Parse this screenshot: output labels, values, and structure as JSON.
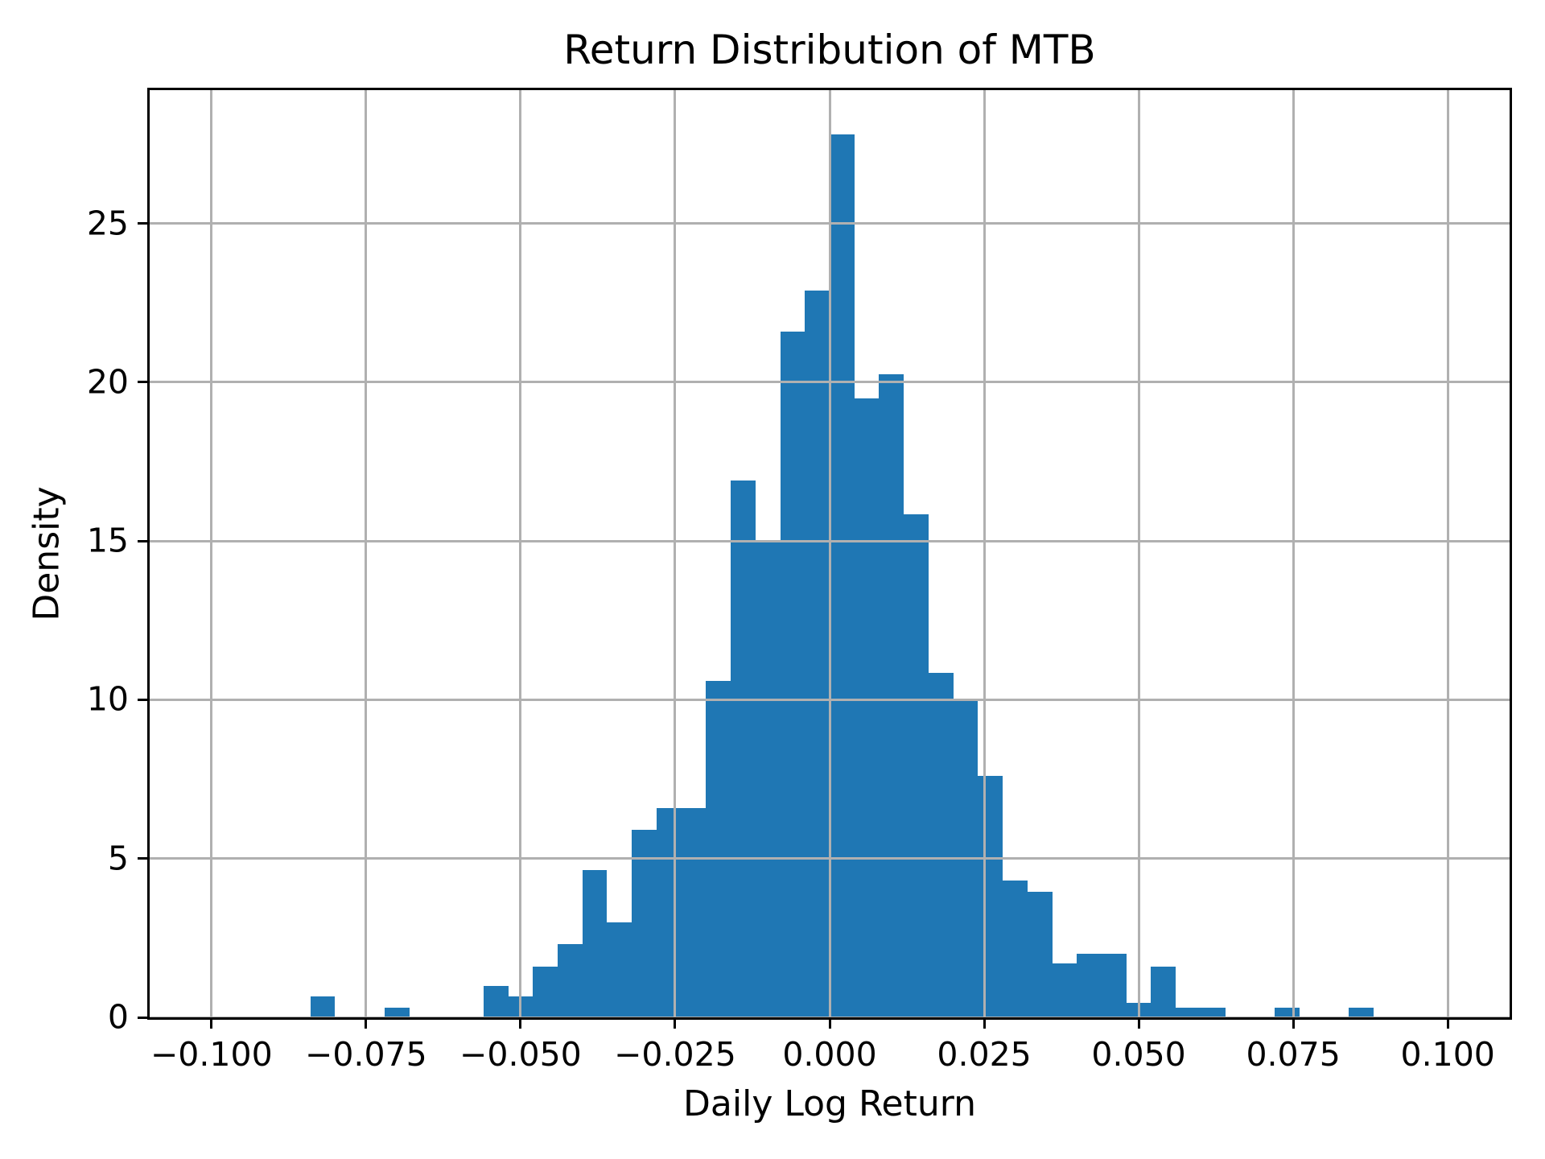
{
  "figure": {
    "background": "#ffffff"
  },
  "chart_data": {
    "type": "bar",
    "subtype": "histogram",
    "title": "Return Distribution of MTB",
    "xlabel": "Daily Log Return",
    "ylabel": "Density",
    "xlim": [
      -0.11,
      0.11
    ],
    "ylim": [
      0,
      29.2
    ],
    "grid": true,
    "legend_position": "none",
    "bar_color": "#1f77b4",
    "grid_color": "#b0b0b0",
    "axis_color": "#000000",
    "bin_width": 0.004,
    "bin_left_edges": [
      -0.084,
      -0.08,
      -0.076,
      -0.072,
      -0.068,
      -0.064,
      -0.06,
      -0.056,
      -0.052,
      -0.048,
      -0.044,
      -0.04,
      -0.036,
      -0.032,
      -0.028,
      -0.024,
      -0.02,
      -0.016,
      -0.012,
      -0.008,
      -0.004,
      0.0,
      0.004,
      0.008,
      0.012,
      0.016,
      0.02,
      0.024,
      0.028,
      0.032,
      0.036,
      0.04,
      0.044,
      0.048,
      0.052,
      0.056,
      0.06,
      0.064,
      0.068,
      0.072,
      0.076,
      0.08,
      0.084
    ],
    "densities": [
      0.65,
      0,
      0,
      0.3,
      0,
      0,
      0,
      1.0,
      0.65,
      1.6,
      2.3,
      4.65,
      3.0,
      5.9,
      6.6,
      6.6,
      10.6,
      16.9,
      15.0,
      21.6,
      22.9,
      27.8,
      19.5,
      20.25,
      15.85,
      10.85,
      10.0,
      7.6,
      4.3,
      3.95,
      1.7,
      2.0,
      2.0,
      0.45,
      1.6,
      0.3,
      0.3,
      0,
      0,
      0.3,
      0,
      0,
      0.3
    ],
    "xticks": {
      "values": [
        -0.1,
        -0.075,
        -0.05,
        -0.025,
        0.0,
        0.025,
        0.05,
        0.075,
        0.1
      ],
      "labels": [
        "−0.100",
        "−0.075",
        "−0.050",
        "−0.025",
        "0.000",
        "0.025",
        "0.050",
        "0.075",
        "0.100"
      ]
    },
    "yticks": {
      "values": [
        0,
        5,
        10,
        15,
        20,
        25
      ],
      "labels": [
        "0",
        "5",
        "10",
        "15",
        "20",
        "25"
      ]
    }
  }
}
